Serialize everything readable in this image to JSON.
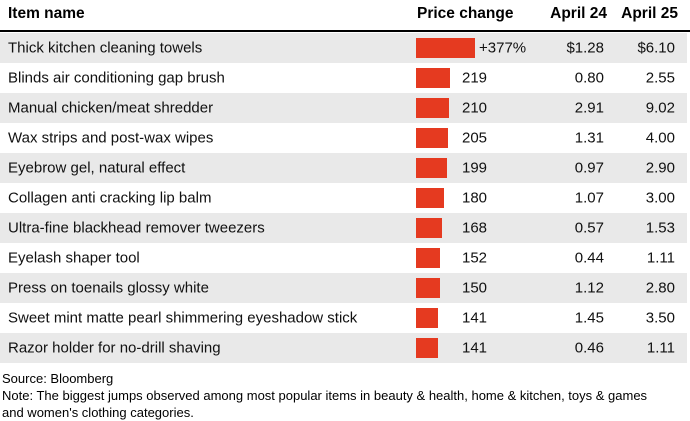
{
  "header": {
    "item": "Item name",
    "price_change": "Price change",
    "apr24": "April 24",
    "apr25": "April 25"
  },
  "rows": [
    {
      "name": "Thick kitchen cleaning towels",
      "pct": 377,
      "pct_label": "+377%",
      "apr24": "$1.28",
      "apr25": "$6.10"
    },
    {
      "name": "Blinds air conditioning gap brush",
      "pct": 219,
      "pct_label": "219",
      "apr24": "0.80",
      "apr25": "2.55"
    },
    {
      "name": "Manual chicken/meat shredder",
      "pct": 210,
      "pct_label": "210",
      "apr24": "2.91",
      "apr25": "9.02"
    },
    {
      "name": "Wax strips and post-wax wipes",
      "pct": 205,
      "pct_label": "205",
      "apr24": "1.31",
      "apr25": "4.00"
    },
    {
      "name": "Eyebrow gel, natural effect",
      "pct": 199,
      "pct_label": "199",
      "apr24": "0.97",
      "apr25": "2.90"
    },
    {
      "name": "Collagen anti cracking lip balm",
      "pct": 180,
      "pct_label": "180",
      "apr24": "1.07",
      "apr25": "3.00"
    },
    {
      "name": "Ultra-fine blackhead remover tweezers",
      "pct": 168,
      "pct_label": "168",
      "apr24": "0.57",
      "apr25": "1.53"
    },
    {
      "name": "Eyelash shaper tool",
      "pct": 152,
      "pct_label": "152",
      "apr24": "0.44",
      "apr25": "1.11"
    },
    {
      "name": "Press on toenails glossy white",
      "pct": 150,
      "pct_label": "150",
      "apr24": "1.12",
      "apr25": "2.80"
    },
    {
      "name": "Sweet mint matte pearl shimmering eyeshadow stick",
      "pct": 141,
      "pct_label": "141",
      "apr24": "1.45",
      "apr25": "3.50"
    },
    {
      "name": "Razor holder for no-drill shaving",
      "pct": 141,
      "pct_label": "141",
      "apr24": "0.46",
      "apr25": "1.11"
    }
  ],
  "footer": {
    "source": "Source: Bloomberg",
    "note": "Note: The biggest jumps observed among most popular items in beauty & health, home & kitchen, toys & games and women's clothing categories."
  },
  "colors": {
    "bar": "#e53a20",
    "stripe": "#e9e9e9"
  },
  "chart_data": {
    "type": "bar",
    "orientation": "horizontal",
    "title": "",
    "categories": [
      "Thick kitchen cleaning towels",
      "Blinds air conditioning gap brush",
      "Manual chicken/meat shredder",
      "Wax strips and post-wax wipes",
      "Eyebrow gel, natural effect",
      "Collagen anti cracking lip balm",
      "Ultra-fine blackhead remover tweezers",
      "Eyelash shaper tool",
      "Press on toenails glossy white",
      "Sweet mint matte pearl shimmering eyeshadow stick",
      "Razor holder for no-drill shaving"
    ],
    "values": [
      377,
      219,
      210,
      205,
      199,
      180,
      168,
      152,
      150,
      141,
      141
    ],
    "value_label": "Price change (%)",
    "series": [
      {
        "name": "April 24",
        "values": [
          1.28,
          0.8,
          2.91,
          1.31,
          0.97,
          1.07,
          0.57,
          0.44,
          1.12,
          1.45,
          0.46
        ]
      },
      {
        "name": "April 25",
        "values": [
          6.1,
          2.55,
          9.02,
          4.0,
          2.9,
          3.0,
          1.53,
          1.11,
          2.8,
          3.5,
          1.11
        ]
      }
    ],
    "xlim": [
      0,
      377
    ],
    "grid": false,
    "legend": "none",
    "bar_color": "#e53a20"
  }
}
